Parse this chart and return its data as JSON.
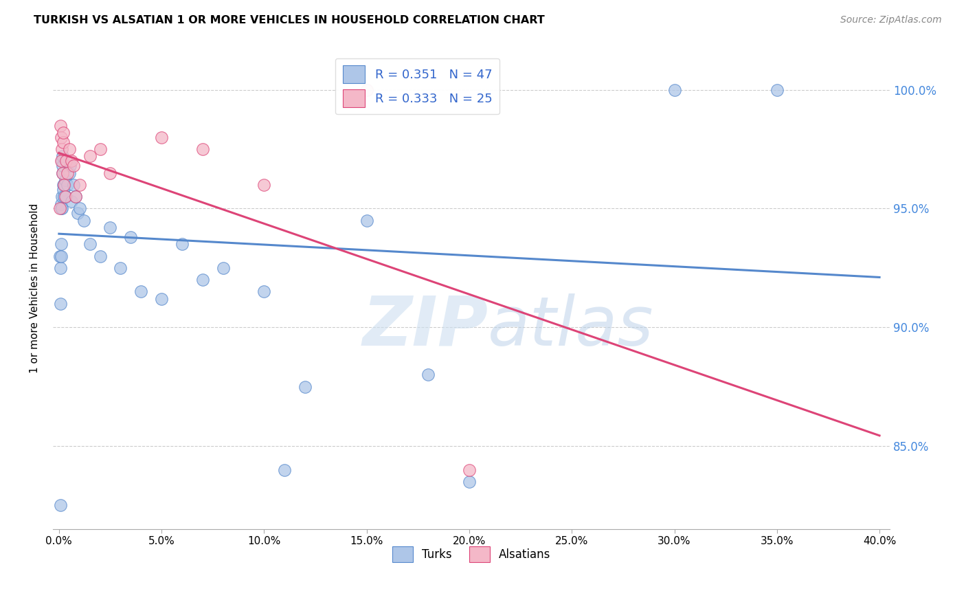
{
  "title": "TURKISH VS ALSATIAN 1 OR MORE VEHICLES IN HOUSEHOLD CORRELATION CHART",
  "source": "Source: ZipAtlas.com",
  "ylabel": "1 or more Vehicles in Household",
  "watermark_zip": "ZIP",
  "watermark_atlas": "atlas",
  "legend_r_turks": "R = 0.351",
  "legend_n_turks": "N = 47",
  "legend_r_alsatians": "R = 0.333",
  "legend_n_alsatians": "N = 25",
  "color_turks_fill": "#aec6e8",
  "color_turks_edge": "#5588cc",
  "color_alsatians_fill": "#f4b8c8",
  "color_alsatians_edge": "#dd4477",
  "color_line_turks": "#5588cc",
  "color_line_alsatians": "#dd4477",
  "color_legend_text": "#3366cc",
  "color_raxis": "#4488dd",
  "xlim_min": -0.3,
  "xlim_max": 40.5,
  "ylim_min": 81.5,
  "ylim_max": 101.8,
  "x_ticks": [
    0.0,
    5.0,
    10.0,
    15.0,
    20.0,
    25.0,
    30.0,
    35.0,
    40.0
  ],
  "y_ticks": [
    85.0,
    90.0,
    95.0,
    100.0
  ],
  "turks_x": [
    0.05,
    0.06,
    0.07,
    0.08,
    0.09,
    0.1,
    0.11,
    0.12,
    0.13,
    0.14,
    0.15,
    0.16,
    0.17,
    0.18,
    0.2,
    0.22,
    0.25,
    0.28,
    0.3,
    0.35,
    0.4,
    0.5,
    0.55,
    0.6,
    0.7,
    0.8,
    0.9,
    1.0,
    1.2,
    1.5,
    2.0,
    2.5,
    3.0,
    3.5,
    4.0,
    5.0,
    6.0,
    7.0,
    8.0,
    10.0,
    11.0,
    12.0,
    15.0,
    18.0,
    20.0,
    30.0,
    35.0
  ],
  "turks_y": [
    93.0,
    82.5,
    92.5,
    91.0,
    93.5,
    93.0,
    95.0,
    95.2,
    95.5,
    95.0,
    97.0,
    96.5,
    96.8,
    97.2,
    96.0,
    95.8,
    95.5,
    96.0,
    96.2,
    95.5,
    96.0,
    96.5,
    96.8,
    95.3,
    96.0,
    95.5,
    94.8,
    95.0,
    94.5,
    93.5,
    93.0,
    94.2,
    92.5,
    93.8,
    91.5,
    91.2,
    93.5,
    92.0,
    92.5,
    91.5,
    84.0,
    87.5,
    94.5,
    88.0,
    83.5,
    100.0,
    100.0
  ],
  "alsatians_x": [
    0.05,
    0.08,
    0.1,
    0.12,
    0.15,
    0.18,
    0.2,
    0.22,
    0.25,
    0.3,
    0.35,
    0.4,
    0.5,
    0.6,
    0.7,
    0.8,
    1.0,
    1.5,
    2.0,
    2.5,
    5.0,
    7.0,
    10.0,
    15.0,
    20.0
  ],
  "alsatians_y": [
    95.0,
    98.5,
    97.0,
    98.0,
    97.5,
    96.5,
    97.8,
    98.2,
    96.0,
    95.5,
    97.0,
    96.5,
    97.5,
    97.0,
    96.8,
    95.5,
    96.0,
    97.2,
    97.5,
    96.5,
    98.0,
    97.5,
    96.0,
    100.0,
    84.0
  ]
}
